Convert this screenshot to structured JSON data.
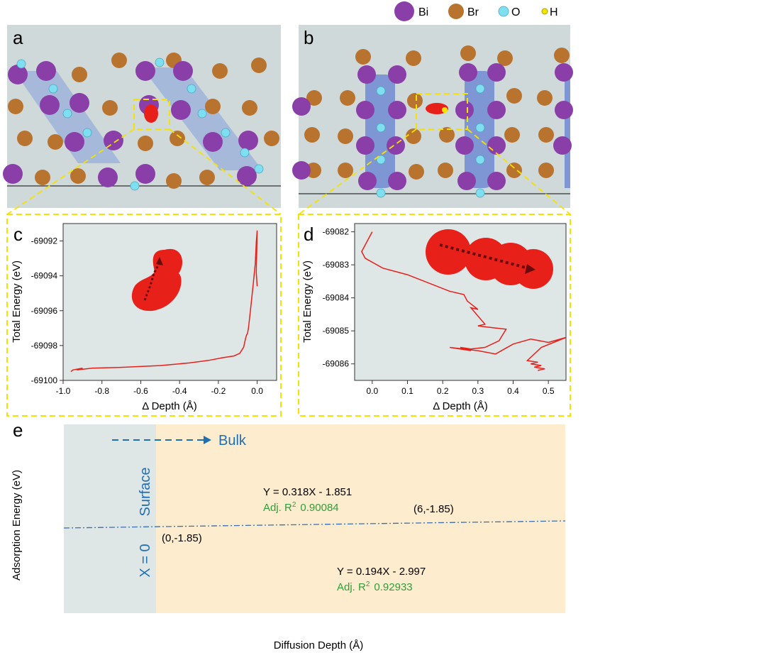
{
  "legend": {
    "items": [
      {
        "label": "Bi",
        "color": "#8a3fa8"
      },
      {
        "label": "Br",
        "color": "#b8732e"
      },
      {
        "label": "O",
        "color": "#7fdff0"
      },
      {
        "label": "H",
        "color": "#f2e600"
      }
    ]
  },
  "panels": {
    "a": "a",
    "b": "b",
    "c": "c",
    "d": "d",
    "e": "e"
  },
  "chart_data": [
    {
      "panel": "c",
      "type": "line",
      "xlabel": "Δ Depth (Å)",
      "ylabel": "Total Energy (eV)",
      "xlim": [
        -1.0,
        0.1
      ],
      "ylim": [
        -69100,
        -69091
      ],
      "xticks": [
        -1.0,
        -0.8,
        -0.6,
        -0.4,
        -0.2,
        0.0
      ],
      "xtick_labels": [
        "-1.0",
        "-0.8",
        "-0.6",
        "-0.4",
        "-0.2",
        "0.0"
      ],
      "yticks": [
        -69092,
        -69094,
        -69096,
        -69098,
        -69100
      ],
      "ytick_labels": [
        "-69092",
        "-69094",
        "-69096",
        "-69098",
        "-69100"
      ],
      "series_color": "#e8201a",
      "x": [
        -0.96,
        -0.95,
        -0.9,
        -0.93,
        -0.89,
        -0.85,
        -0.7,
        -0.5,
        -0.35,
        -0.25,
        -0.18,
        -0.12,
        -0.09,
        -0.07,
        -0.06,
        -0.055,
        -0.05,
        -0.045,
        -0.04,
        -0.03,
        -0.02,
        -0.01,
        -0.005,
        0.0,
        -0.005,
        0.0
      ],
      "y": [
        -69099.5,
        -69099.4,
        -69099.3,
        -69099.4,
        -69099.35,
        -69099.3,
        -69099.25,
        -69099.15,
        -69099.0,
        -69098.85,
        -69098.7,
        -69098.6,
        -69098.45,
        -69098.1,
        -69097.6,
        -69097.4,
        -69097.3,
        -69097.0,
        -69096.5,
        -69095.5,
        -69094.4,
        -69093.3,
        -69092.1,
        -69091.4,
        -69093.8,
        -69094.6
      ]
    },
    {
      "panel": "d",
      "type": "line",
      "xlabel": "Δ Depth (Å)",
      "ylabel": "Total Energy (eV)",
      "xlim": [
        -0.05,
        0.55
      ],
      "ylim": [
        -69086.5,
        -69081.75
      ],
      "xticks": [
        0.0,
        0.1,
        0.2,
        0.3,
        0.4,
        0.5
      ],
      "xtick_labels": [
        "0.0",
        "0.1",
        "0.2",
        "0.3",
        "0.4",
        "0.5"
      ],
      "yticks": [
        -69082,
        -69083,
        -69084,
        -69085,
        -69086
      ],
      "ytick_labels": [
        "-69082",
        "-69083",
        "-69084",
        "-69085",
        "-69086"
      ],
      "series_color": "#e8201a",
      "x": [
        0.0,
        -0.03,
        -0.02,
        0.03,
        0.1,
        0.22,
        0.26,
        0.27,
        0.3,
        0.28,
        0.32,
        0.3,
        0.34,
        0.38,
        0.36,
        0.32,
        0.28,
        0.25,
        0.28,
        0.22,
        0.3,
        0.35,
        0.4,
        0.45,
        0.5,
        0.55,
        0.48,
        0.44,
        0.47,
        0.45,
        0.48,
        0.46,
        0.49,
        0.47
      ],
      "y": [
        -69082.0,
        -69082.6,
        -69082.8,
        -69083.1,
        -69083.3,
        -69083.8,
        -69083.9,
        -69084.1,
        -69084.35,
        -69084.3,
        -69084.8,
        -69084.85,
        -69084.9,
        -69084.95,
        -69085.3,
        -69085.5,
        -69085.55,
        -69085.5,
        -69085.6,
        -69085.5,
        -69085.6,
        -69085.7,
        -69085.4,
        -69085.25,
        -69085.35,
        -69085.2,
        -69085.5,
        -69085.9,
        -69085.95,
        -69086.0,
        -69086.05,
        -69086.1,
        -69086.15,
        -69086.2
      ]
    },
    {
      "panel": "e",
      "type": "line",
      "xlabel": "Diffusion Depth (Å)",
      "ylabel": "Adsorption Energy (eV)",
      "surface_label": "Surface",
      "x0_label": "X = 0",
      "bulk_label": "Bulk",
      "fit_upper": {
        "equation": "Y = 0.318X - 1.851",
        "r2_label": "Adj. R",
        "r2_sup": "2",
        "r2_value": "0.90084"
      },
      "fit_lower": {
        "equation": "Y = 0.194X - 2.997",
        "r2_label": "Adj. R",
        "r2_sup": "2",
        "r2_value": "0.92933"
      },
      "points": [
        {
          "label": "(0,-1.85)",
          "x": 0,
          "y": -1.85
        },
        {
          "label": "(6,-1.85)",
          "x": 6,
          "y": -1.85
        }
      ],
      "colors": {
        "surface_bg": "#dfe6e6",
        "bulk_bg": "#fdeccd",
        "text_blue": "#1f6fb5",
        "text_green": "#2e9e3a"
      }
    }
  ]
}
